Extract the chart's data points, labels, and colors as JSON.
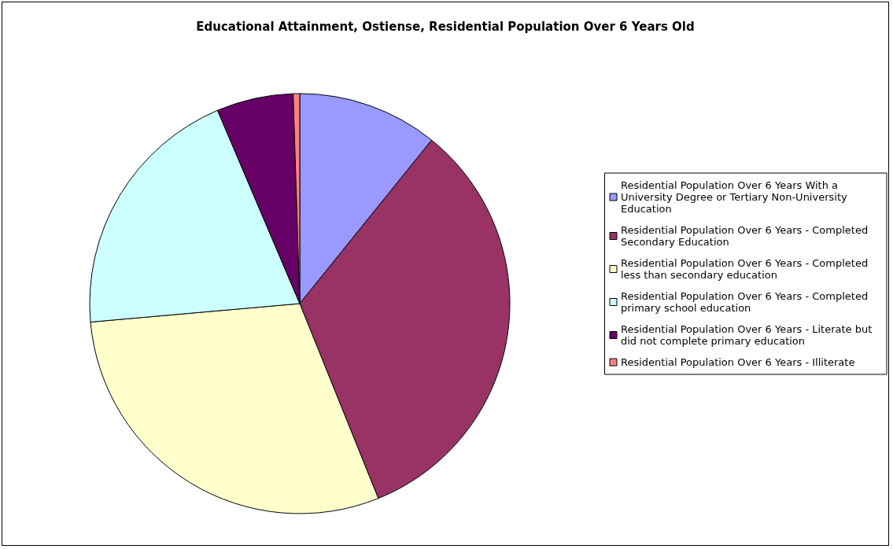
{
  "chart_data": {
    "type": "pie",
    "title": "Educational Attainment, Ostiense, Residential Population Over 6 Years Old",
    "categories": [
      "Residential Population Over 6 Years With a University Degree or Tertiary Non-University Education",
      "Residential Population Over 6 Years - Completed Secondary Education",
      "Residential Population Over 6 Years - Completed less than secondary education",
      "Residential Population Over 6 Years - Completed primary school education",
      "Residential Population Over 6 Years - Literate but did not complete primary education",
      "Residential Population Over 6 Years - Illiterate"
    ],
    "values": [
      10.8,
      33.1,
      29.7,
      20.0,
      5.9,
      0.5
    ],
    "colors": [
      "#9999ff",
      "#993366",
      "#ffffcc",
      "#ccffff",
      "#660066",
      "#ff8080"
    ],
    "legend": "right"
  }
}
